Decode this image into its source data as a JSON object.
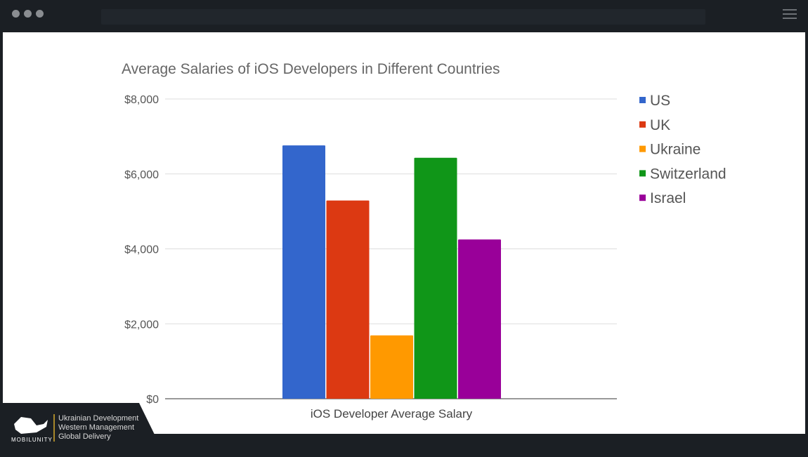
{
  "chart_data": {
    "type": "bar",
    "title": "Average Salaries of iOS Developers in Different Countries",
    "xlabel": "iOS Developer Average Salary",
    "ylabel": "",
    "categories": [
      "iOS Developer Average Salary"
    ],
    "series": [
      {
        "name": "US",
        "values": [
          6760
        ],
        "color": "#3366cc"
      },
      {
        "name": "UK",
        "values": [
          5290
        ],
        "color": "#dc3912"
      },
      {
        "name": "Ukraine",
        "values": [
          1690
        ],
        "color": "#ff9900"
      },
      {
        "name": "Switzerland",
        "values": [
          6430
        ],
        "color": "#109618"
      },
      {
        "name": "Israel",
        "values": [
          4250
        ],
        "color": "#990099"
      }
    ],
    "ylim": [
      0,
      8000
    ],
    "yticks": [
      0,
      2000,
      4000,
      6000,
      8000
    ],
    "ytick_labels": [
      "$0",
      "$2,000",
      "$4,000",
      "$6,000",
      "$8,000"
    ],
    "grid": true,
    "legend_position": "right"
  },
  "branding": {
    "logo_text": "MOBILUNITY",
    "tagline": [
      "Ukrainian Development",
      "Western Management",
      "Global Delivery"
    ]
  }
}
